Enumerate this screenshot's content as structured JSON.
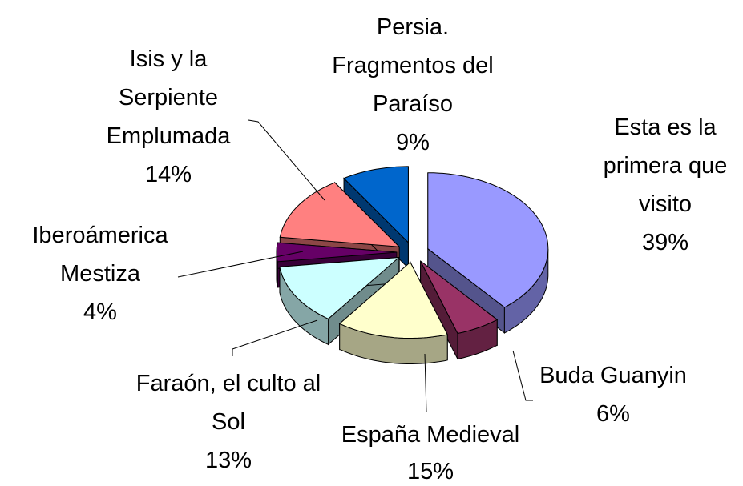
{
  "chart_data": {
    "type": "pie3d",
    "categories": [
      "Esta es la primera que visito",
      "Buda Guanyin",
      "España Medieval",
      "Faraón, el culto al Sol",
      "Iberoámerica Mestiza",
      "Isis y la Serpiente Emplumada",
      "Persia. Fragmentos del Paraíso"
    ],
    "values": [
      39,
      6,
      15,
      13,
      4,
      14,
      9
    ],
    "value_labels": [
      "39%",
      "6%",
      "15%",
      "13%",
      "4%",
      "14%",
      "9%"
    ],
    "colors": [
      "#9999ff",
      "#993366",
      "#ffffcc",
      "#ccffff",
      "#660066",
      "#ff8080",
      "#0066cc"
    ]
  }
}
